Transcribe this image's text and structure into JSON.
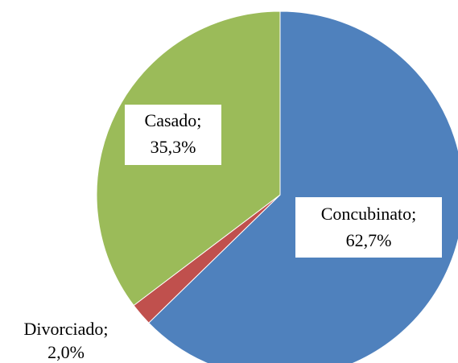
{
  "chart_data": {
    "type": "pie",
    "categories": [
      "Concubinato;",
      "Divorciado;",
      "Casado;"
    ],
    "values": [
      62.7,
      2.0,
      35.3
    ],
    "value_labels": [
      "62,7%",
      "2,0%",
      "35,3%"
    ],
    "colors": [
      "#4f81bd",
      "#c0504d",
      "#9bbb59"
    ]
  }
}
